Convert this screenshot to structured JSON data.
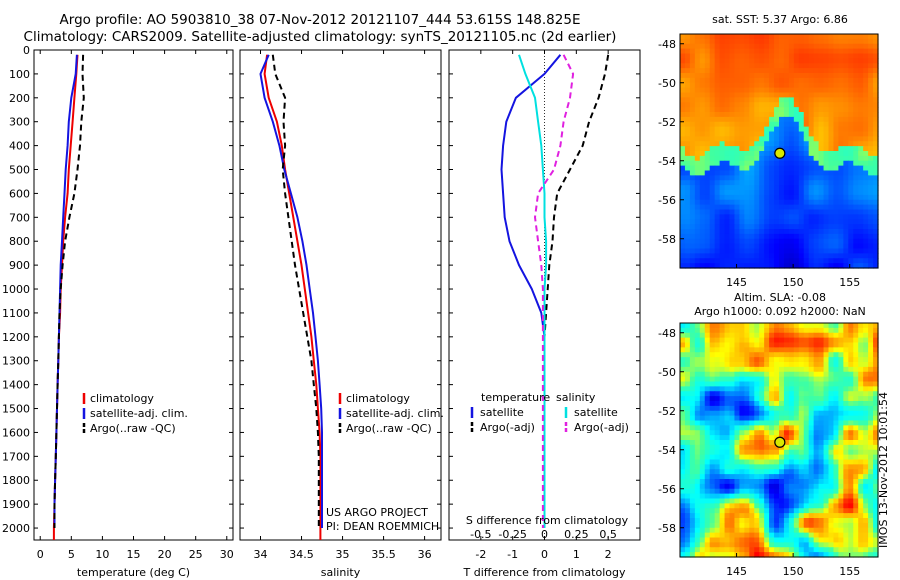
{
  "header": {
    "line1": "Argo profile: AO 5903810_38 07-Nov-2012 20121107_444 53.615S 148.825E",
    "line2": "Climatology: CARS2009. Satellite-adjusted climatology: synTS_20121105.nc (2d earlier)"
  },
  "colors": {
    "climatology": "#ee0000",
    "satellite": "#1414e0",
    "argo": "#000000",
    "s_satellite": "#00e0e0",
    "s_argo": "#e020e0"
  },
  "chart_data": [
    {
      "id": "temperature",
      "type": "line",
      "xlabel": "temperature (deg C)",
      "ylabel": "",
      "xlim": [
        -1,
        31
      ],
      "ylim": [
        2050,
        0
      ],
      "xticks": [
        0,
        5,
        10,
        15,
        20,
        25,
        30
      ],
      "yticks": [
        0,
        100,
        200,
        300,
        400,
        500,
        600,
        700,
        800,
        900,
        1000,
        1100,
        1200,
        1300,
        1400,
        1500,
        1600,
        1700,
        1800,
        1900,
        2000
      ],
      "legend": [
        "climatology",
        "satellite-adj. clim.",
        "Argo(..raw -QC)"
      ],
      "legend_position": "lower-center",
      "series": [
        {
          "name": "climatology",
          "style": "solid",
          "x": [
            6.0,
            5.8,
            5.5,
            5.2,
            4.9,
            4.6,
            4.4,
            4.0,
            3.7,
            3.5,
            3.3,
            3.2,
            3.0,
            2.9,
            2.8,
            2.7,
            2.6,
            2.5,
            2.4,
            2.3,
            2.2,
            2.2
          ],
          "y": [
            20,
            100,
            200,
            300,
            400,
            500,
            600,
            700,
            800,
            900,
            1000,
            1100,
            1200,
            1300,
            1400,
            1500,
            1600,
            1700,
            1800,
            1900,
            2000,
            2050
          ]
        },
        {
          "name": "satellite-adj. clim.",
          "style": "solid",
          "x": [
            5.9,
            5.7,
            5.0,
            4.6,
            4.4,
            4.1,
            3.9,
            3.7,
            3.5,
            3.3,
            3.2,
            3.1,
            3.0,
            2.9,
            2.8,
            2.7,
            2.6,
            2.5,
            2.4,
            2.3,
            2.3
          ],
          "y": [
            20,
            100,
            200,
            300,
            400,
            500,
            600,
            700,
            800,
            900,
            1000,
            1100,
            1200,
            1300,
            1400,
            1500,
            1600,
            1700,
            1800,
            1900,
            2000
          ]
        },
        {
          "name": "Argo(..raw -QC)",
          "style": "dashed",
          "x": [
            6.9,
            6.8,
            7.0,
            6.6,
            6.4,
            6.0,
            5.5,
            4.7,
            4.0,
            3.6,
            3.3,
            3.1,
            3.0,
            2.9,
            2.8,
            2.7,
            2.6,
            2.5,
            2.4,
            2.3,
            2.3
          ],
          "y": [
            20,
            100,
            200,
            300,
            400,
            500,
            600,
            700,
            800,
            900,
            1000,
            1100,
            1200,
            1300,
            1400,
            1500,
            1600,
            1700,
            1800,
            1900,
            2000
          ]
        }
      ]
    },
    {
      "id": "salinity",
      "type": "line",
      "xlabel": "salinity",
      "ylabel": "",
      "xlim": [
        33.75,
        36.2
      ],
      "ylim": [
        2050,
        0
      ],
      "xticks": [
        34,
        34.5,
        35,
        35.5,
        36
      ],
      "legend": [
        "climatology",
        "satellite-adj. clim.",
        "Argo(..raw -QC)"
      ],
      "legend_position": "lower-center",
      "annotation": [
        "US ARGO PROJECT",
        "PI: DEAN ROEMMICH"
      ],
      "series": [
        {
          "name": "climatology",
          "style": "solid",
          "x": [
            34.08,
            34.05,
            34.1,
            34.2,
            34.26,
            34.3,
            34.35,
            34.4,
            34.45,
            34.5,
            34.54,
            34.58,
            34.62,
            34.65,
            34.68,
            34.7,
            34.72,
            34.73,
            34.73,
            34.73,
            34.73,
            34.73
          ],
          "y": [
            20,
            100,
            200,
            300,
            400,
            500,
            600,
            700,
            800,
            900,
            1000,
            1100,
            1200,
            1300,
            1400,
            1500,
            1600,
            1700,
            1800,
            1900,
            2000,
            2050
          ]
        },
        {
          "name": "satellite-adj. clim.",
          "style": "solid",
          "x": [
            34.1,
            34.0,
            34.05,
            34.15,
            34.23,
            34.29,
            34.37,
            34.45,
            34.51,
            34.56,
            34.6,
            34.64,
            34.67,
            34.7,
            34.72,
            34.74,
            34.75,
            34.75,
            34.75,
            34.75,
            34.75
          ],
          "y": [
            20,
            100,
            200,
            300,
            400,
            500,
            600,
            700,
            800,
            900,
            1000,
            1100,
            1200,
            1300,
            1400,
            1500,
            1600,
            1700,
            1800,
            1900,
            2000
          ]
        },
        {
          "name": "Argo(..raw -QC)",
          "style": "dashed",
          "x": [
            34.15,
            34.18,
            34.3,
            34.28,
            34.3,
            34.27,
            34.3,
            34.34,
            34.38,
            34.42,
            34.47,
            34.52,
            34.57,
            34.62,
            34.65,
            34.68,
            34.7,
            34.71,
            34.71,
            34.71,
            34.71
          ],
          "y": [
            20,
            100,
            200,
            300,
            400,
            500,
            600,
            700,
            800,
            900,
            1000,
            1100,
            1200,
            1300,
            1400,
            1500,
            1600,
            1700,
            1800,
            1900,
            2000
          ]
        }
      ]
    },
    {
      "id": "difference",
      "type": "line",
      "xlabel": "T difference from climatology",
      "top_axis_label": "S difference from climatology",
      "xlim": [
        -3,
        3
      ],
      "ylim": [
        2050,
        0
      ],
      "xticks": [
        -2,
        -1,
        0,
        1,
        2
      ],
      "s_ticks_labels": [
        "-0.5",
        "-0.25",
        "0",
        "0.25",
        "0.5"
      ],
      "s_ticks_positions": [
        -2,
        -1,
        0,
        1,
        2
      ],
      "zero_line": "dotted",
      "legend_groups": [
        {
          "title": "temperature",
          "items": [
            "satellite",
            "Argo(-adj)"
          ]
        },
        {
          "title": "salinity",
          "items": [
            "satellite",
            "Argo(-adj)"
          ]
        }
      ],
      "series": [
        {
          "name": "temperature satellite",
          "group": "temperature",
          "style": "solid",
          "x": [
            0.5,
            0.0,
            -0.9,
            -1.2,
            -1.3,
            -1.35,
            -1.3,
            -1.25,
            -1.1,
            -0.8,
            -0.4,
            -0.1,
            0.0,
            0.0,
            0.0,
            0.0,
            0.0,
            0.0,
            0.0,
            0.0,
            0.0
          ],
          "y": [
            20,
            100,
            200,
            300,
            400,
            500,
            600,
            700,
            800,
            900,
            1000,
            1100,
            1200,
            1300,
            1400,
            1500,
            1600,
            1700,
            1800,
            1900,
            2000
          ]
        },
        {
          "name": "temperature Argo(-adj)",
          "group": "temperature",
          "style": "dashed",
          "x": [
            2.0,
            1.9,
            1.7,
            1.4,
            1.2,
            0.8,
            0.4,
            0.3,
            0.25,
            0.15,
            0.1,
            0.05,
            0.0,
            0.0,
            0.0,
            0.0,
            0.0,
            0.0,
            0.0,
            0.0,
            0.0
          ],
          "y": [
            20,
            100,
            200,
            300,
            400,
            500,
            600,
            700,
            800,
            900,
            1000,
            1100,
            1200,
            1300,
            1400,
            1500,
            1600,
            1700,
            1800,
            1900,
            2000
          ]
        },
        {
          "name": "salinity satellite",
          "group": "salinity",
          "style": "solid",
          "x": [
            -0.8,
            -0.6,
            -0.3,
            -0.2,
            -0.1,
            -0.05,
            0.0,
            0.0,
            0.05,
            0.05,
            0.0,
            0.0,
            0.0,
            0.0,
            0.0,
            0.0,
            0.0,
            0.0,
            0.0,
            0.0,
            0.0
          ],
          "y": [
            20,
            100,
            200,
            300,
            400,
            500,
            600,
            700,
            800,
            900,
            1000,
            1100,
            1200,
            1300,
            1400,
            1500,
            1600,
            1700,
            1800,
            1900,
            2000
          ]
        },
        {
          "name": "salinity Argo(-adj)",
          "group": "salinity",
          "style": "dashed",
          "x": [
            0.6,
            0.9,
            0.8,
            0.6,
            0.5,
            0.3,
            -0.2,
            -0.3,
            -0.2,
            -0.1,
            -0.05,
            -0.05,
            -0.05,
            -0.05,
            -0.05,
            -0.05,
            -0.05,
            -0.05,
            -0.05,
            -0.05,
            -0.05
          ],
          "y": [
            20,
            100,
            200,
            300,
            400,
            500,
            600,
            700,
            800,
            900,
            1000,
            1100,
            1200,
            1300,
            1400,
            1500,
            1600,
            1700,
            1800,
            1900,
            2000
          ]
        }
      ]
    },
    {
      "id": "map_sst",
      "type": "heatmap",
      "title": "sat. SST: 5.37 Argo: 6.86",
      "xlim": [
        140,
        157.5
      ],
      "ylim": [
        -59.5,
        -47.5
      ],
      "xticks": [
        145,
        150,
        155
      ],
      "yticks": [
        -48,
        -50,
        -52,
        -54,
        -56,
        -58
      ],
      "marker": {
        "lon": 148.825,
        "lat": -53.615
      }
    },
    {
      "id": "map_sla",
      "type": "heatmap",
      "title": [
        "Altim. SLA: -0.08",
        "Argo h1000: 0.092 h2000: NaN"
      ],
      "xlim": [
        140,
        157.5
      ],
      "ylim": [
        -59.5,
        -47.5
      ],
      "xticks": [
        145,
        150,
        155
      ],
      "yticks": [
        -48,
        -50,
        -52,
        -54,
        -56,
        -58
      ],
      "marker": {
        "lon": 148.825,
        "lat": -53.615
      }
    }
  ],
  "side_stamp": "IMOS 13-Nov-2012 10:01:54"
}
